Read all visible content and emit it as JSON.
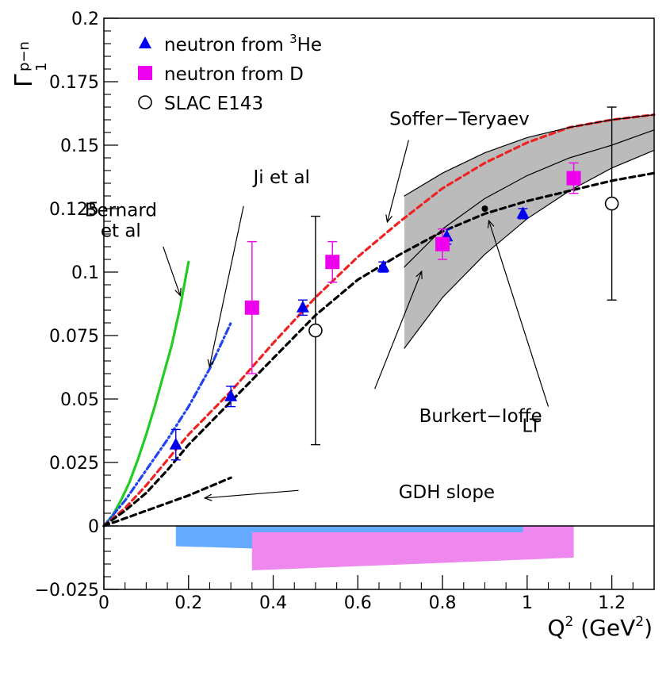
{
  "chart_data": {
    "type": "scatter",
    "xlabel": "Q",
    "xlabel_sup": "2",
    "xlabel_unit_open": "(GeV",
    "xlabel_unit_sup": "2",
    "xlabel_unit_close": ")",
    "ylabel_main": "Γ",
    "ylabel_sub": "1",
    "ylabel_sup": "p−n",
    "xlim": [
      0,
      1.3
    ],
    "ylim": [
      -0.025,
      0.2
    ],
    "x_ticks": [
      {
        "v": 0,
        "label": "0"
      },
      {
        "v": 0.2,
        "label": "0.2"
      },
      {
        "v": 0.4,
        "label": "0.4"
      },
      {
        "v": 0.6,
        "label": "0.6"
      },
      {
        "v": 0.8,
        "label": "0.8"
      },
      {
        "v": 1.0,
        "label": "1"
      },
      {
        "v": 1.2,
        "label": "1.2"
      }
    ],
    "y_ticks": [
      {
        "v": -0.025,
        "label": "−0.025"
      },
      {
        "v": 0,
        "label": "0"
      },
      {
        "v": 0.025,
        "label": "0.025"
      },
      {
        "v": 0.05,
        "label": "0.05"
      },
      {
        "v": 0.075,
        "label": "0.075"
      },
      {
        "v": 0.1,
        "label": "0.1"
      },
      {
        "v": 0.125,
        "label": "0.125"
      },
      {
        "v": 0.15,
        "label": "0.15"
      },
      {
        "v": 0.175,
        "label": "0.175"
      },
      {
        "v": 0.2,
        "label": "0.2"
      }
    ],
    "legend": {
      "placement": "top-left",
      "entries": [
        {
          "key": "he3",
          "marker": "triangle",
          "color": "#0000ee",
          "text": "neutron from ",
          "sup": "3",
          "text2": "He"
        },
        {
          "key": "deut",
          "marker": "square",
          "color": "#ee00ee",
          "text": "neutron from D"
        },
        {
          "key": "slac",
          "marker": "open-circle",
          "color": "#000000",
          "text": "SLAC E143"
        }
      ]
    },
    "series": [
      {
        "key": "he3",
        "name": "neutron from 3He",
        "marker": "triangle",
        "color": "#0000ee",
        "points": [
          {
            "x": 0.17,
            "y": 0.032,
            "err": 0.006
          },
          {
            "x": 0.3,
            "y": 0.051,
            "err": 0.004
          },
          {
            "x": 0.47,
            "y": 0.086,
            "err": 0.003
          },
          {
            "x": 0.66,
            "y": 0.102,
            "err": 0.002
          },
          {
            "x": 0.81,
            "y": 0.114,
            "err": 0.003
          },
          {
            "x": 0.99,
            "y": 0.123,
            "err": 0.002
          }
        ]
      },
      {
        "key": "deut",
        "name": "neutron from D",
        "marker": "square",
        "color": "#ee00ee",
        "points": [
          {
            "x": 0.35,
            "y": 0.086,
            "err": 0.026
          },
          {
            "x": 0.54,
            "y": 0.104,
            "err": 0.008
          },
          {
            "x": 0.8,
            "y": 0.111,
            "err": 0.006
          },
          {
            "x": 1.11,
            "y": 0.137,
            "err": 0.006
          }
        ]
      },
      {
        "key": "slac",
        "name": "SLAC E143",
        "marker": "open-circle",
        "color": "#000000",
        "points": [
          {
            "x": 0.5,
            "y": 0.077,
            "err": 0.045
          },
          {
            "x": 1.2,
            "y": 0.127,
            "err": 0.038
          }
        ]
      }
    ],
    "curves": [
      {
        "key": "bernard",
        "color": "#22cc22",
        "style": "solid",
        "points": [
          [
            0,
            0
          ],
          [
            0.02,
            0.004
          ],
          [
            0.04,
            0.01
          ],
          [
            0.06,
            0.017
          ],
          [
            0.08,
            0.026
          ],
          [
            0.1,
            0.036
          ],
          [
            0.12,
            0.047
          ],
          [
            0.14,
            0.059
          ],
          [
            0.16,
            0.071
          ],
          [
            0.18,
            0.086
          ],
          [
            0.2,
            0.104
          ]
        ]
      },
      {
        "key": "ji",
        "color": "#2244ee",
        "style": "dashdot",
        "points": [
          [
            0,
            0
          ],
          [
            0.05,
            0.01
          ],
          [
            0.1,
            0.022
          ],
          [
            0.15,
            0.034
          ],
          [
            0.2,
            0.047
          ],
          [
            0.25,
            0.062
          ],
          [
            0.3,
            0.08
          ]
        ]
      },
      {
        "key": "soffer",
        "color": "#ee2222",
        "style": "dashed",
        "points": [
          [
            0,
            0
          ],
          [
            0.05,
            0.007
          ],
          [
            0.1,
            0.016
          ],
          [
            0.15,
            0.026
          ],
          [
            0.2,
            0.036
          ],
          [
            0.3,
            0.053
          ],
          [
            0.4,
            0.072
          ],
          [
            0.5,
            0.09
          ],
          [
            0.6,
            0.106
          ],
          [
            0.7,
            0.12
          ],
          [
            0.8,
            0.133
          ],
          [
            0.9,
            0.143
          ],
          [
            1.0,
            0.151
          ],
          [
            1.1,
            0.157
          ],
          [
            1.2,
            0.16
          ],
          [
            1.3,
            0.162
          ]
        ]
      },
      {
        "key": "burkert",
        "color": "#000000",
        "style": "dashed",
        "points": [
          [
            0,
            0
          ],
          [
            0.05,
            0.006
          ],
          [
            0.1,
            0.013
          ],
          [
            0.15,
            0.022
          ],
          [
            0.2,
            0.032
          ],
          [
            0.3,
            0.049
          ],
          [
            0.4,
            0.066
          ],
          [
            0.5,
            0.083
          ],
          [
            0.6,
            0.097
          ],
          [
            0.7,
            0.107
          ],
          [
            0.8,
            0.116
          ],
          [
            0.9,
            0.123
          ],
          [
            1.0,
            0.128
          ],
          [
            1.1,
            0.132
          ],
          [
            1.2,
            0.136
          ],
          [
            1.3,
            0.139
          ]
        ]
      },
      {
        "key": "gdh",
        "color": "#000000",
        "style": "dashed",
        "points": [
          [
            0,
            0
          ],
          [
            0.1,
            0.006
          ],
          [
            0.2,
            0.012
          ],
          [
            0.3,
            0.019
          ]
        ]
      },
      {
        "key": "lt-center",
        "color": "#000000",
        "style": "solid",
        "points": [
          [
            0.71,
            0.102
          ],
          [
            0.8,
            0.117
          ],
          [
            0.9,
            0.129
          ],
          [
            1.0,
            0.138
          ],
          [
            1.1,
            0.145
          ],
          [
            1.2,
            0.15
          ],
          [
            1.3,
            0.156
          ]
        ]
      },
      {
        "key": "lt-upper",
        "color": "#000000",
        "style": "solid",
        "points": [
          [
            0.71,
            0.13
          ],
          [
            0.8,
            0.139
          ],
          [
            0.9,
            0.147
          ],
          [
            1.0,
            0.153
          ],
          [
            1.1,
            0.157
          ],
          [
            1.2,
            0.16
          ],
          [
            1.3,
            0.162
          ]
        ]
      },
      {
        "key": "lt-lower",
        "color": "#000000",
        "style": "solid",
        "points": [
          [
            0.71,
            0.07
          ],
          [
            0.8,
            0.09
          ],
          [
            0.9,
            0.107
          ],
          [
            1.0,
            0.121
          ],
          [
            1.1,
            0.132
          ],
          [
            1.2,
            0.141
          ],
          [
            1.3,
            0.148
          ]
        ]
      }
    ],
    "lt_band": {
      "color": "#bbbbbb",
      "upper": [
        [
          0.71,
          0.13
        ],
        [
          0.8,
          0.139
        ],
        [
          0.9,
          0.147
        ],
        [
          1.0,
          0.153
        ],
        [
          1.1,
          0.157
        ],
        [
          1.2,
          0.16
        ],
        [
          1.3,
          0.162
        ]
      ],
      "lower": [
        [
          0.71,
          0.07
        ],
        [
          0.8,
          0.09
        ],
        [
          0.9,
          0.107
        ],
        [
          1.0,
          0.121
        ],
        [
          1.1,
          0.132
        ],
        [
          1.2,
          0.141
        ],
        [
          1.3,
          0.148
        ]
      ]
    },
    "lt_point": {
      "x": 0.9,
      "y": 0.125
    },
    "systematic_bands": [
      {
        "key": "sys-he3",
        "color": "#66aaff",
        "points": [
          [
            0.17,
            0
          ],
          [
            0.99,
            0
          ],
          [
            0.99,
            -0.012
          ],
          [
            0.17,
            -0.008
          ]
        ]
      },
      {
        "key": "sys-deut",
        "color": "#ee88ee",
        "points": [
          [
            0.35,
            -0.0025
          ],
          [
            0.99,
            -0.0025
          ],
          [
            0.99,
            0
          ],
          [
            1.11,
            0
          ],
          [
            1.11,
            -0.0125
          ],
          [
            0.35,
            -0.0175
          ]
        ]
      }
    ],
    "annotations": [
      {
        "key": "soffer",
        "lines": [
          "Soffer−Teryaev"
        ],
        "anchor": [
          0.84,
          0.158
        ],
        "arrow_from": [
          0.72,
          0.152
        ],
        "arrow_to": [
          0.67,
          0.12
        ]
      },
      {
        "key": "ji",
        "lines": [
          "Ji et al"
        ],
        "anchor": [
          0.42,
          0.135
        ],
        "arrow_from": [
          0.33,
          0.126
        ],
        "arrow_to": [
          0.25,
          0.063
        ]
      },
      {
        "key": "bernard",
        "lines": [
          "Bernard",
          "et al"
        ],
        "anchor": [
          0.04,
          0.122
        ],
        "arrow_from": [
          0.14,
          0.11
        ],
        "arrow_to": [
          0.18,
          0.091
        ]
      },
      {
        "key": "burkert",
        "lines": [
          "Burkert−Ioffe"
        ],
        "anchor": [
          0.89,
          0.041
        ],
        "arrow_from": [
          0.64,
          0.054
        ],
        "arrow_to": [
          0.75,
          0.1
        ]
      },
      {
        "key": "lt",
        "lines": [
          "LT"
        ],
        "anchor": [
          1.01,
          0.037
        ],
        "arrow_from": [
          1.05,
          0.047
        ],
        "arrow_to": [
          0.91,
          0.12
        ]
      },
      {
        "key": "gdh",
        "lines": [
          "GDH slope"
        ],
        "anchor": [
          0.81,
          0.011
        ],
        "arrow_from": [
          0.46,
          0.014
        ],
        "arrow_to": [
          0.24,
          0.011
        ]
      }
    ]
  }
}
